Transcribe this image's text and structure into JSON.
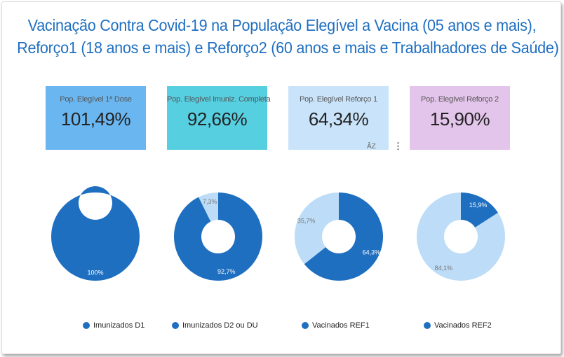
{
  "title": {
    "line1": "Vacinação Contra Covid-19 na População Elegível a Vacina (05 anos e mais),",
    "line2": "Reforço1 (18 anos e mais) e Reforço2 (60 anos e mais e Trabalhadores de Saúde)"
  },
  "kpis": [
    {
      "label": "Pop. Elegível 1ª Dose",
      "value": "101,49%",
      "color": "#6ab6f0"
    },
    {
      "label": "Pop. Elegível Imuniz. Completa",
      "value": "92,66%",
      "color": "#56cfe1"
    },
    {
      "label": "Pop. Elegível Reforço 1",
      "value": "64,34%",
      "color": "#c9e4fa"
    },
    {
      "label": "Pop. Elegível Reforço 2",
      "value": "15,90%",
      "color": "#e3c4ea"
    }
  ],
  "controls": {
    "sort_icon": "sort-az-icon",
    "sort_label": "ÂZ",
    "menu_icon": "kebab-menu-icon",
    "menu_label": "⋮"
  },
  "colors": {
    "primary": "#1f6fc1",
    "secondary": "#bcdcf7"
  },
  "chart_data": [
    {
      "type": "pie",
      "series": [
        {
          "name": "Imunizados D1",
          "values": [
            100
          ]
        }
      ],
      "labels": [
        "100%"
      ]
    },
    {
      "type": "pie",
      "series": [
        {
          "name": "Imunizados D2 ou DU",
          "values": [
            92.7,
            7.3
          ]
        }
      ],
      "labels": [
        "92,7%",
        "7,3%"
      ]
    },
    {
      "type": "pie",
      "series": [
        {
          "name": "Vacinados REF1",
          "values": [
            64.3,
            35.7
          ]
        }
      ],
      "labels": [
        "64,3%",
        "35,7%"
      ]
    },
    {
      "type": "pie",
      "series": [
        {
          "name": "Vacinados REF2",
          "values": [
            15.9,
            84.1
          ]
        }
      ],
      "labels": [
        "15,9%",
        "84,1%"
      ]
    }
  ]
}
